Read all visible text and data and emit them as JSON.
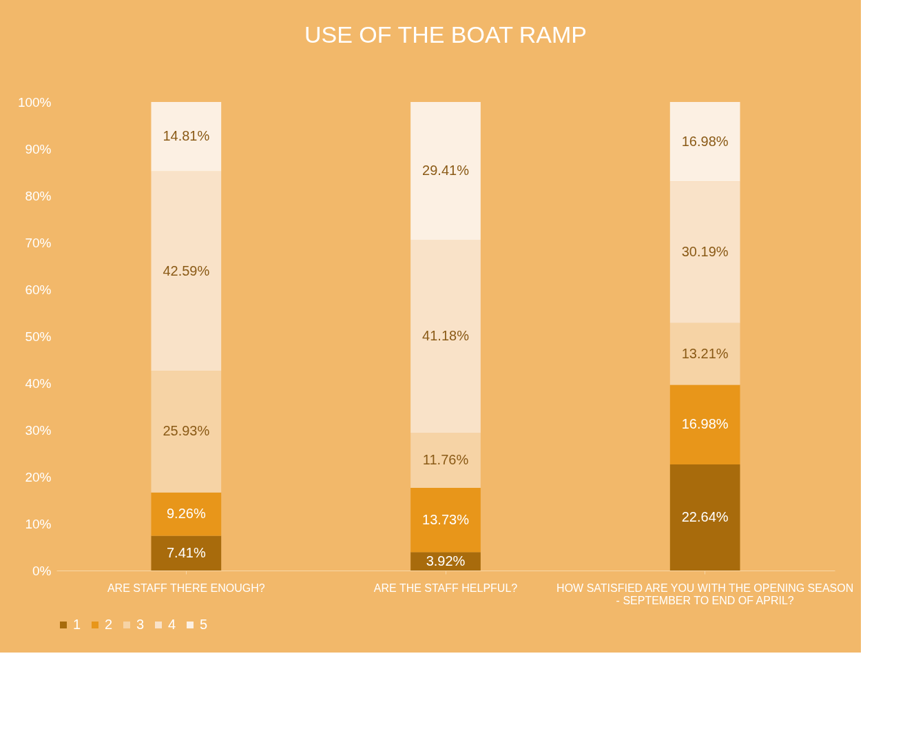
{
  "chart_data": {
    "type": "bar",
    "stacked": true,
    "title": "USE OF THE BOAT RAMP",
    "categories": [
      "ARE STAFF THERE ENOUGH?",
      "ARE THE STAFF HELPFUL?",
      "HOW SATISFIED ARE YOU WITH THE OPENING SEASON - SEPTEMBER TO END OF APRIL?"
    ],
    "series": [
      {
        "name": "1",
        "color": "#a86b0c",
        "values": [
          7.41,
          3.92,
          22.64
        ],
        "value_labels": [
          "7.41%",
          "3.92%",
          "22.64%"
        ]
      },
      {
        "name": "2",
        "color": "#e8961a",
        "values": [
          9.26,
          13.73,
          16.98
        ],
        "value_labels": [
          "9.26%",
          "13.73%",
          "16.98%"
        ]
      },
      {
        "name": "3",
        "color": "#f6d3a5",
        "values": [
          25.93,
          11.76,
          13.21
        ],
        "value_labels": [
          "25.93%",
          "11.76%",
          "13.21%"
        ]
      },
      {
        "name": "4",
        "color": "#f9e2c8",
        "values": [
          42.59,
          41.18,
          30.19
        ],
        "value_labels": [
          "42.59%",
          "41.18%",
          "30.19%"
        ]
      },
      {
        "name": "5",
        "color": "#fcf0e3",
        "values": [
          14.81,
          29.41,
          16.98
        ],
        "value_labels": [
          "14.81%",
          "29.41%",
          "16.98%"
        ]
      }
    ],
    "ylim": [
      0,
      100
    ],
    "yticks": [
      {
        "value": 0,
        "label": "0%"
      },
      {
        "value": 10,
        "label": "10%"
      },
      {
        "value": 20,
        "label": "20%"
      },
      {
        "value": 30,
        "label": "30%"
      },
      {
        "value": 40,
        "label": "40%"
      },
      {
        "value": 50,
        "label": "50%"
      },
      {
        "value": 60,
        "label": "60%"
      },
      {
        "value": 70,
        "label": "70%"
      },
      {
        "value": 80,
        "label": "80%"
      },
      {
        "value": 90,
        "label": "90%"
      },
      {
        "value": 100,
        "label": "100%"
      }
    ],
    "legend": "bottom",
    "grid": false
  }
}
